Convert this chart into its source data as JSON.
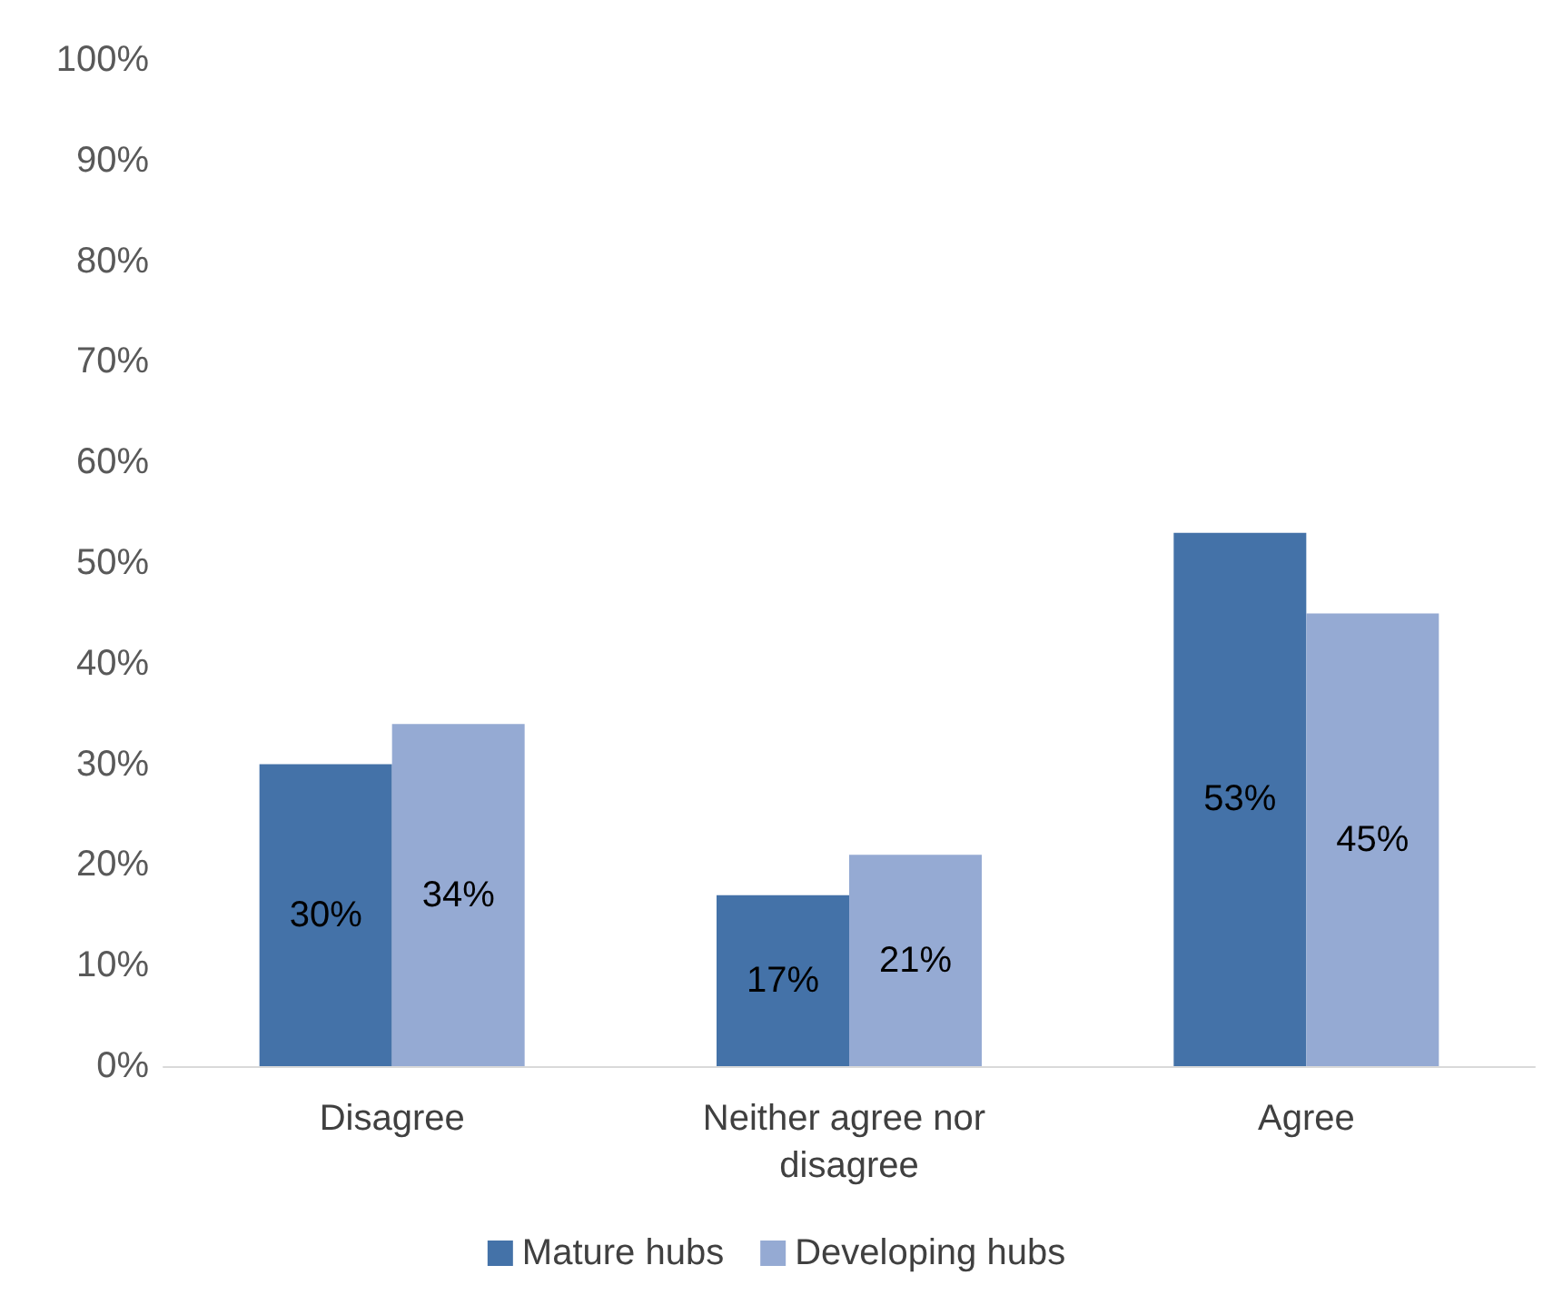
{
  "chart_data": {
    "type": "bar",
    "categories": [
      "Disagree",
      "Neither agree nor disagree",
      "Agree"
    ],
    "series": [
      {
        "name": "Mature hubs",
        "color": "#4472a8",
        "values": [
          30,
          17,
          53
        ],
        "value_labels": [
          "30%",
          "17%",
          "53%"
        ]
      },
      {
        "name": "Developing hubs",
        "color": "#95aad3",
        "values": [
          34,
          21,
          45
        ],
        "value_labels": [
          "34%",
          "21%",
          "45%"
        ]
      }
    ],
    "ylim": [
      0,
      100
    ],
    "yticks": [
      {
        "value": 0,
        "label": "0%"
      },
      {
        "value": 10,
        "label": "10%"
      },
      {
        "value": 20,
        "label": "20%"
      },
      {
        "value": 30,
        "label": "30%"
      },
      {
        "value": 40,
        "label": "40%"
      },
      {
        "value": 50,
        "label": "50%"
      },
      {
        "value": 60,
        "label": "60%"
      },
      {
        "value": 70,
        "label": "70%"
      },
      {
        "value": 80,
        "label": "80%"
      },
      {
        "value": 90,
        "label": "90%"
      },
      {
        "value": 100,
        "label": "100%"
      }
    ],
    "grid": false,
    "legend": "bottom"
  }
}
